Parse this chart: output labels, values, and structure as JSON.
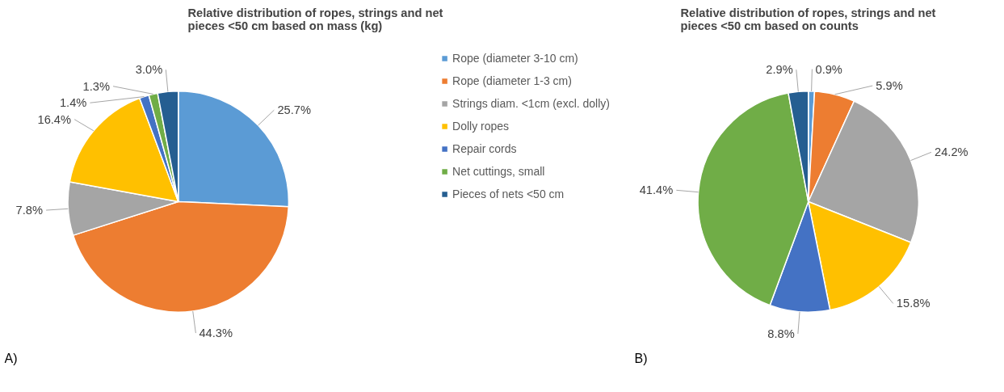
{
  "chart_data": [
    {
      "type": "pie",
      "title": "Relative distribution of ropes, strings and net pieces <50 cm based on mass (kg)",
      "categories": [
        "Rope (diameter 3-10 cm)",
        "Rope (diameter 1-3 cm)",
        "Strings diam. <1cm (excl. dolly)",
        "Dolly ropes",
        "Repair cords",
        "Net cuttings, small",
        "Pieces of nets <50 cm"
      ],
      "values": [
        25.7,
        44.3,
        7.8,
        16.4,
        1.4,
        1.3,
        3.0
      ],
      "value_labels": [
        "25.7%",
        "44.3%",
        "7.8%",
        "16.4%",
        "1.4%",
        "1.3%",
        "3.0%"
      ],
      "colors": [
        "#5b9bd5",
        "#ed7d31",
        "#a5a5a5",
        "#ffc000",
        "#4472c4",
        "#70ad47",
        "#255e91"
      ],
      "legend": "right",
      "annotations": [
        "A)"
      ]
    },
    {
      "type": "pie",
      "title": "Relative distribution of ropes, strings and net pieces <50 cm based on counts",
      "categories": [
        null,
        null,
        null,
        null,
        null,
        null,
        null
      ],
      "values": [
        0.9,
        5.9,
        24.2,
        15.8,
        8.8,
        41.4,
        2.9
      ],
      "value_labels": [
        "0.9%",
        "5.9%",
        "24.2%",
        "15.8%",
        "8.8%",
        "41.4%",
        "2.9%"
      ],
      "colors": [
        "#5b9bd5",
        "#ed7d31",
        "#a5a5a5",
        "#ffc000",
        "#4472c4",
        "#70ad47",
        "#255e91"
      ],
      "annotations": [
        "B)"
      ]
    }
  ]
}
